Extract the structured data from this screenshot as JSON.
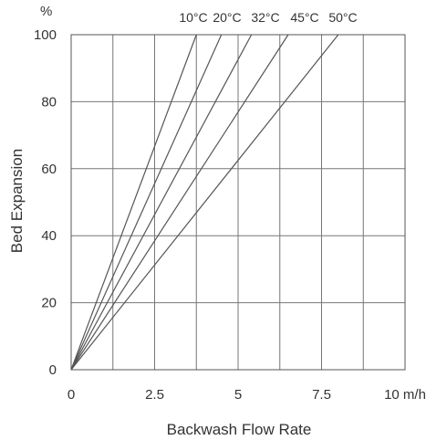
{
  "chart_data": {
    "type": "line",
    "xlabel": "Backwash Flow Rate",
    "ylabel": "Bed Expansion",
    "y_unit": "%",
    "xlim": [
      0,
      10
    ],
    "ylim": [
      0,
      100
    ],
    "x_ticks": [
      {
        "value": 0,
        "label": "0"
      },
      {
        "value": 2.5,
        "label": "2.5"
      },
      {
        "value": 5,
        "label": "5"
      },
      {
        "value": 7.5,
        "label": "7.5"
      },
      {
        "value": 10,
        "label": "10 m/h"
      }
    ],
    "y_ticks": [
      {
        "value": 0,
        "label": "0"
      },
      {
        "value": 20,
        "label": "20"
      },
      {
        "value": 40,
        "label": "40"
      },
      {
        "value": 60,
        "label": "60"
      },
      {
        "value": 80,
        "label": "80"
      },
      {
        "value": 100,
        "label": "100"
      }
    ],
    "x_gridlines": [
      0,
      1.25,
      2.5,
      3.75,
      5,
      6.25,
      7.5,
      8.75,
      10
    ],
    "y_gridlines": [
      0,
      20,
      40,
      60,
      80,
      100
    ],
    "grid": true,
    "legend": "series labels printed along top edge",
    "series": [
      {
        "name": "10°C",
        "x": [
          0,
          3.75
        ],
        "y": [
          0,
          100
        ]
      },
      {
        "name": "20°C",
        "x": [
          0,
          4.5
        ],
        "y": [
          0,
          100
        ]
      },
      {
        "name": "32°C",
        "x": [
          0,
          5.4
        ],
        "y": [
          0,
          100
        ]
      },
      {
        "name": "45°C",
        "x": [
          0,
          6.5
        ],
        "y": [
          0,
          100
        ]
      },
      {
        "name": "50°C",
        "x": [
          0,
          8.0
        ],
        "y": [
          0,
          100
        ]
      }
    ],
    "colors": {
      "line": "#555555",
      "grid": "#777777"
    }
  }
}
